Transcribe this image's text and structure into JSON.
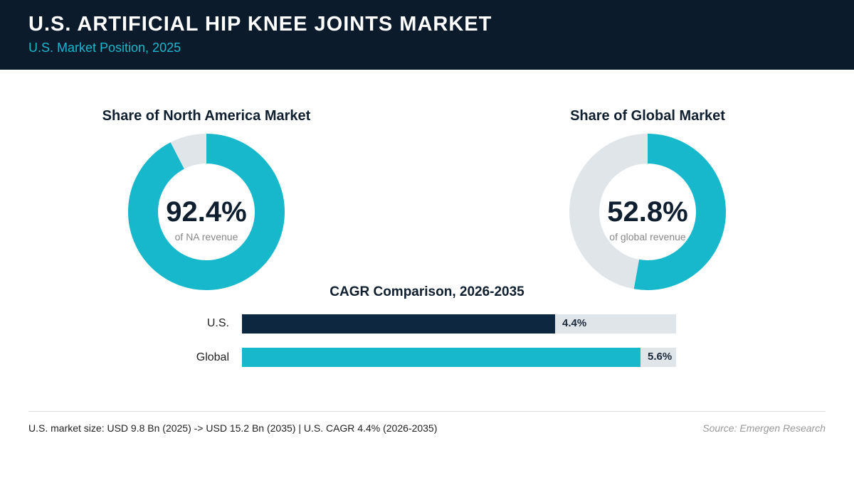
{
  "header": {
    "title": "U.S. ARTIFICIAL HIP KNEE JOINTS MARKET",
    "subtitle": "U.S. Market Position, 2025"
  },
  "colors": {
    "header_bg": "#0b1b2b",
    "accent": "#17b8cc",
    "navy": "#0d2740",
    "track": "#e0e5ea"
  },
  "chart_data": [
    {
      "type": "pie",
      "title": "Share of North America Market",
      "value_label": "92.4%",
      "caption": "of NA revenue",
      "values": [
        92.4,
        7.6
      ]
    },
    {
      "type": "pie",
      "title": "Share of Global Market",
      "value_label": "52.8%",
      "caption": "of global revenue",
      "values": [
        52.8,
        47.2
      ]
    },
    {
      "type": "bar",
      "orientation": "horizontal",
      "title": "CAGR Comparison, 2026-2035",
      "categories": [
        "U.S.",
        "Global"
      ],
      "values": [
        4.4,
        5.6
      ],
      "value_labels": [
        "4.4%",
        "5.6%"
      ],
      "xlim": [
        0,
        6.1
      ]
    }
  ],
  "footer": {
    "note": "U.S. market size: USD 9.8 Bn (2025) -> USD 15.2 Bn (2035)  |  U.S. CAGR 4.4% (2026-2035)",
    "source": "Source: Emergen Research"
  }
}
